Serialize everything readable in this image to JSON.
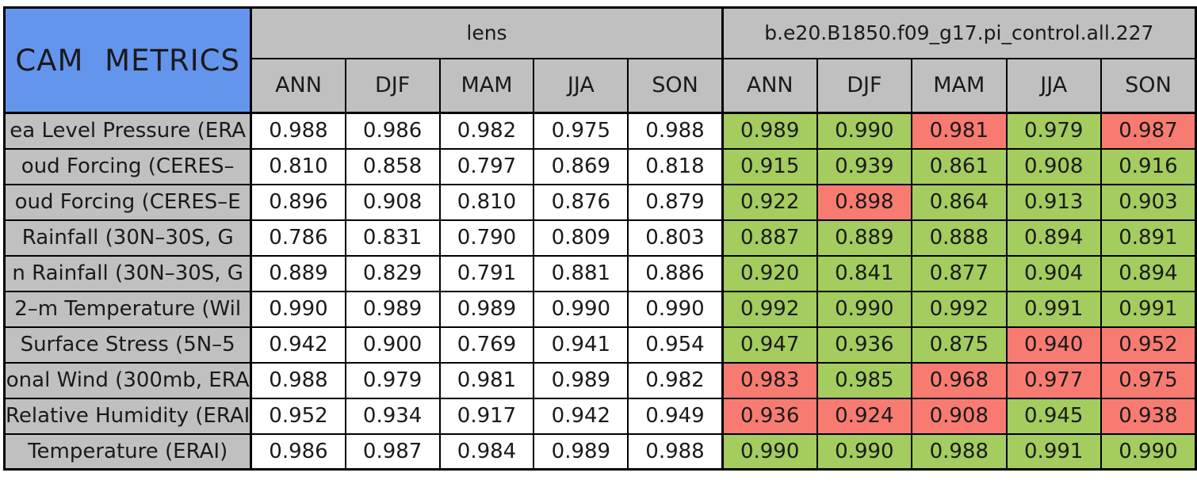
{
  "chart_data": {
    "type": "table",
    "title": "CAM METRICS",
    "groups": [
      {
        "name": "lens"
      },
      {
        "name": "b.e20.B1850.f09_g17.pi_control.all.227"
      }
    ],
    "seasons": [
      "ANN",
      "DJF",
      "MAM",
      "JJA",
      "SON"
    ],
    "cell_color_meaning": {
      "better": "green cell",
      "worse": "red cell",
      "reference": "white cell"
    },
    "rows": [
      {
        "label": "ea Level Pressure (ERA",
        "lens": [
          "0.988",
          "0.986",
          "0.982",
          "0.975",
          "0.988"
        ],
        "model": [
          "0.989",
          "0.990",
          "0.981",
          "0.979",
          "0.987"
        ],
        "model_status": [
          "better",
          "better",
          "worse",
          "better",
          "worse"
        ]
      },
      {
        "label": "oud Forcing (CERES–",
        "lens": [
          "0.810",
          "0.858",
          "0.797",
          "0.869",
          "0.818"
        ],
        "model": [
          "0.915",
          "0.939",
          "0.861",
          "0.908",
          "0.916"
        ],
        "model_status": [
          "better",
          "better",
          "better",
          "better",
          "better"
        ]
      },
      {
        "label": "oud Forcing (CERES–E",
        "lens": [
          "0.896",
          "0.908",
          "0.810",
          "0.876",
          "0.879"
        ],
        "model": [
          "0.922",
          "0.898",
          "0.864",
          "0.913",
          "0.903"
        ],
        "model_status": [
          "better",
          "worse",
          "better",
          "better",
          "better"
        ]
      },
      {
        "label": "Rainfall (30N–30S, G",
        "lens": [
          "0.786",
          "0.831",
          "0.790",
          "0.809",
          "0.803"
        ],
        "model": [
          "0.887",
          "0.889",
          "0.888",
          "0.894",
          "0.891"
        ],
        "model_status": [
          "better",
          "better",
          "better",
          "better",
          "better"
        ]
      },
      {
        "label": "n Rainfall (30N–30S, G",
        "lens": [
          "0.889",
          "0.829",
          "0.791",
          "0.881",
          "0.886"
        ],
        "model": [
          "0.920",
          "0.841",
          "0.877",
          "0.904",
          "0.894"
        ],
        "model_status": [
          "better",
          "better",
          "better",
          "better",
          "better"
        ]
      },
      {
        "label": "2–m Temperature (Wil",
        "lens": [
          "0.990",
          "0.989",
          "0.989",
          "0.990",
          "0.990"
        ],
        "model": [
          "0.992",
          "0.990",
          "0.992",
          "0.991",
          "0.991"
        ],
        "model_status": [
          "better",
          "better",
          "better",
          "better",
          "better"
        ]
      },
      {
        "label": "Surface Stress (5N–5",
        "lens": [
          "0.942",
          "0.900",
          "0.769",
          "0.941",
          "0.954"
        ],
        "model": [
          "0.947",
          "0.936",
          "0.875",
          "0.940",
          "0.952"
        ],
        "model_status": [
          "better",
          "better",
          "better",
          "worse",
          "worse"
        ]
      },
      {
        "label": "onal Wind (300mb, ERA",
        "lens": [
          "0.988",
          "0.979",
          "0.981",
          "0.989",
          "0.982"
        ],
        "model": [
          "0.983",
          "0.985",
          "0.968",
          "0.977",
          "0.975"
        ],
        "model_status": [
          "worse",
          "better",
          "worse",
          "worse",
          "worse"
        ]
      },
      {
        "label": "Relative Humidity (ERAI",
        "lens": [
          "0.952",
          "0.934",
          "0.917",
          "0.942",
          "0.949"
        ],
        "model": [
          "0.936",
          "0.924",
          "0.908",
          "0.945",
          "0.938"
        ],
        "model_status": [
          "worse",
          "worse",
          "worse",
          "better",
          "worse"
        ]
      },
      {
        "label": "Temperature (ERAI)",
        "lens": [
          "0.986",
          "0.987",
          "0.984",
          "0.989",
          "0.988"
        ],
        "model": [
          "0.990",
          "0.990",
          "0.988",
          "0.991",
          "0.990"
        ],
        "model_status": [
          "better",
          "better",
          "better",
          "better",
          "better"
        ]
      }
    ]
  },
  "colors": {
    "title_bg": "#6495ed",
    "header_bg": "#c0c0c0",
    "better": "#a4cc5e",
    "worse": "#f87b72",
    "value_bg": "#ffffff",
    "border": "#000000"
  }
}
